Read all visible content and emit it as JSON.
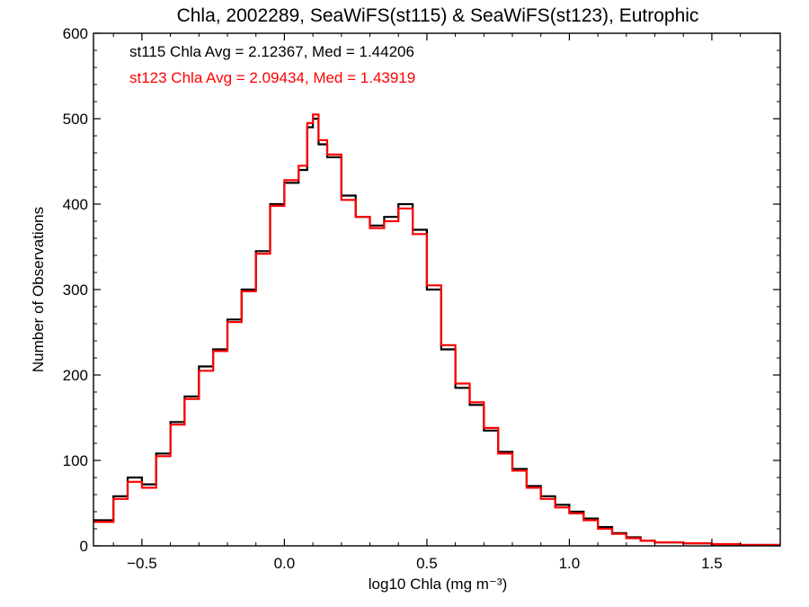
{
  "chart_data": {
    "type": "line",
    "title": "Chla, 2002289, SeaWiFS(st115) & SeaWiFS(st123), Eutrophic",
    "xlabel": "log10 Chla (mg m⁻³)",
    "ylabel": "Number of Observations",
    "xlim": [
      -0.67,
      1.74
    ],
    "ylim": [
      0,
      600
    ],
    "x_ticks": [
      -0.5,
      0.0,
      0.5,
      1.0,
      1.5
    ],
    "x_tick_labels": [
      "−0.5",
      "0.0",
      "0.5",
      "1.0",
      "1.5"
    ],
    "y_ticks": [
      0,
      100,
      200,
      300,
      400,
      500,
      600
    ],
    "y_tick_labels": [
      "0",
      "100",
      "200",
      "300",
      "400",
      "500",
      "600"
    ],
    "grid": false,
    "annotations": [
      "st115 Chla Avg = 2.12367, Med = 1.44206",
      "st123 Chla Avg = 2.09434, Med = 1.43919"
    ],
    "series": [
      {
        "color": "#000000",
        "style": "step",
        "x": [
          -0.67,
          -0.6,
          -0.55,
          -0.5,
          -0.45,
          -0.4,
          -0.35,
          -0.3,
          -0.25,
          -0.2,
          -0.15,
          -0.1,
          -0.05,
          0.0,
          0.05,
          0.08,
          0.1,
          0.12,
          0.15,
          0.2,
          0.25,
          0.3,
          0.35,
          0.4,
          0.45,
          0.5,
          0.55,
          0.6,
          0.65,
          0.7,
          0.75,
          0.8,
          0.85,
          0.9,
          0.95,
          1.0,
          1.05,
          1.1,
          1.15,
          1.2,
          1.25,
          1.3,
          1.4,
          1.5,
          1.6,
          1.74
        ],
        "values": [
          30,
          58,
          80,
          72,
          108,
          145,
          175,
          210,
          230,
          265,
          300,
          345,
          400,
          425,
          440,
          490,
          500,
          470,
          455,
          410,
          385,
          375,
          385,
          400,
          370,
          300,
          230,
          185,
          165,
          135,
          110,
          90,
          70,
          58,
          48,
          40,
          32,
          22,
          15,
          10,
          6,
          4,
          3,
          2,
          1,
          1
        ]
      },
      {
        "color": "#ff0000",
        "style": "step",
        "x": [
          -0.67,
          -0.6,
          -0.55,
          -0.5,
          -0.45,
          -0.4,
          -0.35,
          -0.3,
          -0.25,
          -0.2,
          -0.15,
          -0.1,
          -0.05,
          0.0,
          0.05,
          0.08,
          0.1,
          0.12,
          0.15,
          0.2,
          0.25,
          0.3,
          0.35,
          0.4,
          0.45,
          0.5,
          0.55,
          0.6,
          0.65,
          0.7,
          0.75,
          0.8,
          0.85,
          0.9,
          0.95,
          1.0,
          1.05,
          1.1,
          1.15,
          1.2,
          1.25,
          1.3,
          1.4,
          1.5,
          1.6,
          1.74
        ],
        "values": [
          28,
          55,
          75,
          68,
          105,
          142,
          172,
          205,
          228,
          262,
          298,
          342,
          398,
          428,
          445,
          495,
          505,
          475,
          458,
          405,
          385,
          372,
          380,
          395,
          365,
          305,
          235,
          190,
          168,
          138,
          108,
          88,
          68,
          55,
          45,
          38,
          30,
          20,
          14,
          9,
          6,
          4,
          3,
          2,
          1,
          1
        ]
      }
    ]
  }
}
